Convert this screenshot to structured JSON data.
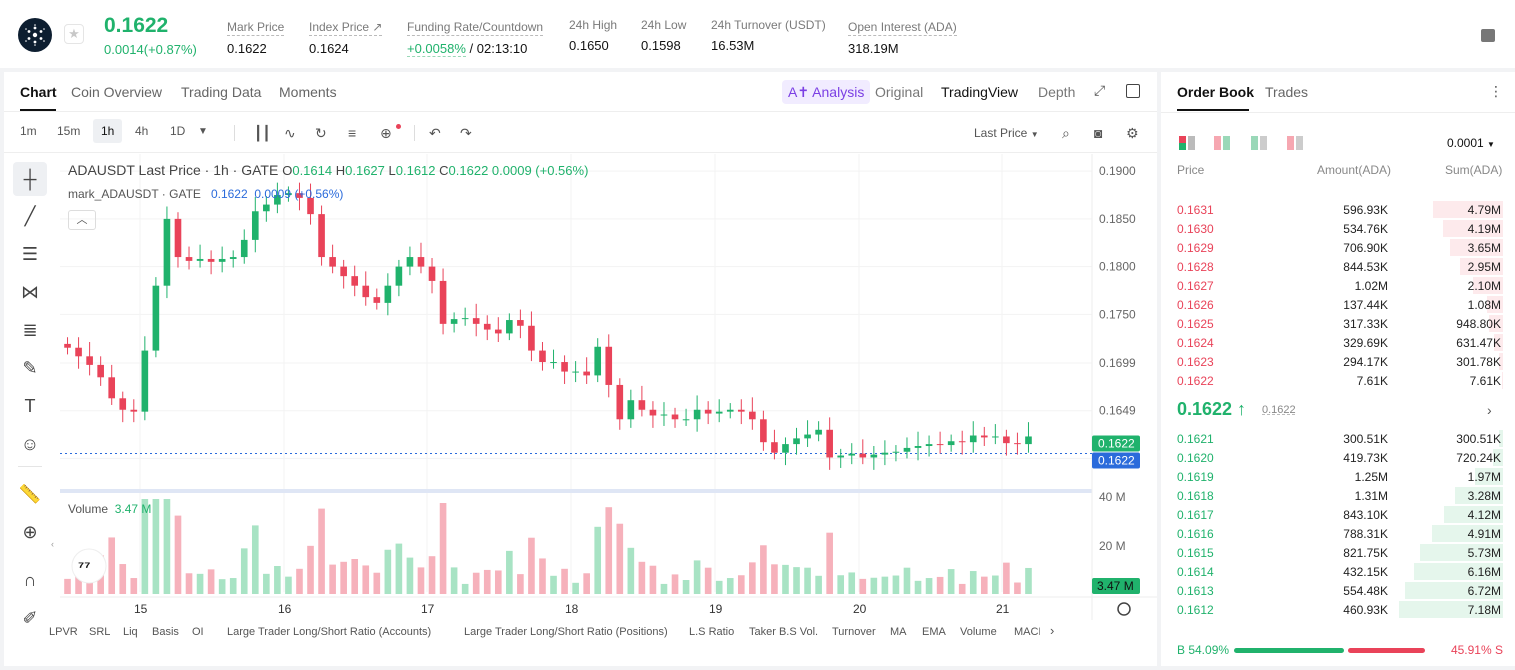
{
  "ticker": {
    "last_price": "0.1622",
    "change": "0.0014(+0.87%)",
    "stats": [
      {
        "label": "Mark Price",
        "value": "0.1622"
      },
      {
        "label": "Index Price ↗",
        "value": "0.1624"
      },
      {
        "label": "Funding Rate/Countdown",
        "value_green": "+0.0058%",
        "value": " / 02:13:10"
      },
      {
        "label": "24h High",
        "value": "0.1650"
      },
      {
        "label": "24h Low",
        "value": "0.1598"
      },
      {
        "label": "24h Turnover (USDT)",
        "value": "16.53M"
      },
      {
        "label": "Open Interest (ADA)",
        "value": "318.19M"
      }
    ]
  },
  "chart_tabs": [
    "Chart",
    "Coin Overview",
    "Trading Data",
    "Moments"
  ],
  "ai_label": "A✝ Analysis",
  "views": [
    "Original",
    "TradingView",
    "Depth"
  ],
  "timeframes": [
    "1m",
    "15m",
    "1h",
    "4h",
    "1D"
  ],
  "price_type": "Last Price",
  "legend": {
    "symbol": "ADAUSDT Last Price · 1h · GATE",
    "o_label": "O",
    "o": "0.1614",
    "h_label": "H",
    "h": "0.1627",
    "l_label": "L",
    "l": "0.1612",
    "c_label": "C",
    "c": "0.1622",
    "chg": "0.0009 (+0.56%)",
    "mark_symbol": "mark_ADAUSDT · GATE",
    "mark_price": "0.1622",
    "mark_chg": "0.0009 (+0.56%)"
  },
  "volume_legend": {
    "label": "Volume",
    "value": "3.47 M"
  },
  "indicators": [
    "LPVR",
    "SRL",
    "Liq",
    "Basis",
    "OI",
    "Large Trader Long/Short Ratio (Accounts)",
    "Large Trader Long/Short Ratio (Positions)",
    "L.S Ratio",
    "Taker B.S Vol.",
    "Turnover",
    "MA",
    "EMA",
    "Volume",
    "MACD"
  ],
  "chart_data": {
    "type": "candlestick",
    "series_price": [
      0.1715,
      0.1706,
      0.1697,
      0.1684,
      0.1662,
      0.165,
      0.1648,
      0.1712,
      0.178,
      0.185,
      0.181,
      0.1806,
      0.1808,
      0.1805,
      0.1808,
      0.181,
      0.1828,
      0.1858,
      0.1865,
      0.1875,
      0.1877,
      0.1872,
      0.1855,
      0.181,
      0.18,
      0.179,
      0.178,
      0.1768,
      0.1762,
      0.178,
      0.18,
      0.181,
      0.18,
      0.1785,
      0.174,
      0.1745,
      0.1746,
      0.174,
      0.1734,
      0.173,
      0.1744,
      0.1738,
      0.1712,
      0.17,
      0.17,
      0.169,
      0.169,
      0.1686,
      0.1716,
      0.1676,
      0.164,
      0.166,
      0.165,
      0.1644,
      0.1645,
      0.164,
      0.164,
      0.165,
      0.1646,
      0.1648,
      0.165,
      0.1648,
      0.164,
      0.1616,
      0.1605,
      0.1614,
      0.162,
      0.1624,
      0.1629,
      0.16,
      0.1602,
      0.1604,
      0.16,
      0.1603,
      0.1605,
      0.1606,
      0.161,
      0.1612,
      0.1614,
      0.1613,
      0.1617,
      0.1616,
      0.1623,
      0.1621,
      0.1622,
      0.1615,
      0.1614,
      0.1622
    ],
    "yticks": [
      "0.1900",
      "0.1850",
      "0.1800",
      "0.1750",
      "0.1699",
      "0.1649",
      "0.1599"
    ],
    "ylim": [
      0.1568,
      0.1918
    ],
    "xticks": [
      "15",
      "16",
      "17",
      "18",
      "19",
      "20",
      "21"
    ],
    "current_price_labels": [
      "0.1622",
      "0.1622"
    ],
    "volume_yticks": [
      "40 M",
      "20 M"
    ],
    "volume_current": "3.47 M"
  },
  "orderbook": {
    "tabs": [
      "Order Book",
      "Trades"
    ],
    "precision": "0.0001",
    "headers": [
      "Price",
      "Amount(ADA)",
      "Sum(ADA)"
    ],
    "asks": [
      {
        "price": "0.1631",
        "amount": "596.93K",
        "sum": "4.79M",
        "depth": 0.67
      },
      {
        "price": "0.1630",
        "amount": "534.76K",
        "sum": "4.19M",
        "depth": 0.58
      },
      {
        "price": "0.1629",
        "amount": "706.90K",
        "sum": "3.65M",
        "depth": 0.51
      },
      {
        "price": "0.1628",
        "amount": "844.53K",
        "sum": "2.95M",
        "depth": 0.41
      },
      {
        "price": "0.1627",
        "amount": "1.02M",
        "sum": "2.10M",
        "depth": 0.29
      },
      {
        "price": "0.1626",
        "amount": "137.44K",
        "sum": "1.08M",
        "depth": 0.15
      },
      {
        "price": "0.1625",
        "amount": "317.33K",
        "sum": "948.80K",
        "depth": 0.13
      },
      {
        "price": "0.1624",
        "amount": "329.69K",
        "sum": "631.47K",
        "depth": 0.09
      },
      {
        "price": "0.1623",
        "amount": "294.17K",
        "sum": "301.78K",
        "depth": 0.04
      },
      {
        "price": "0.1622",
        "amount": "7.61K",
        "sum": "7.61K",
        "depth": 0.01
      }
    ],
    "mid_price": "0.1622 ↑",
    "mid_mark": "0.1622",
    "bids": [
      {
        "price": "0.1621",
        "amount": "300.51K",
        "sum": "300.51K",
        "depth": 0.04
      },
      {
        "price": "0.1620",
        "amount": "419.73K",
        "sum": "720.24K",
        "depth": 0.1
      },
      {
        "price": "0.1619",
        "amount": "1.25M",
        "sum": "1.97M",
        "depth": 0.27
      },
      {
        "price": "0.1618",
        "amount": "1.31M",
        "sum": "3.28M",
        "depth": 0.46
      },
      {
        "price": "0.1617",
        "amount": "843.10K",
        "sum": "4.12M",
        "depth": 0.57
      },
      {
        "price": "0.1616",
        "amount": "788.31K",
        "sum": "4.91M",
        "depth": 0.68
      },
      {
        "price": "0.1615",
        "amount": "821.75K",
        "sum": "5.73M",
        "depth": 0.8
      },
      {
        "price": "0.1614",
        "amount": "432.15K",
        "sum": "6.16M",
        "depth": 0.86
      },
      {
        "price": "0.1613",
        "amount": "554.48K",
        "sum": "6.72M",
        "depth": 0.94
      },
      {
        "price": "0.1612",
        "amount": "460.93K",
        "sum": "7.18M",
        "depth": 1.0
      }
    ],
    "buy_ratio": "B 54.09%",
    "sell_ratio": "45.91% S",
    "buy_fraction": 0.5409
  },
  "colors": {
    "up": "#20b26c",
    "down": "#e94359",
    "accent": "#7b3fe4"
  }
}
